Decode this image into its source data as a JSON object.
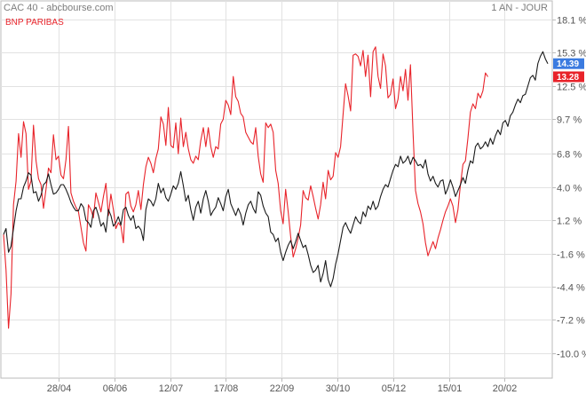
{
  "chart_data": {
    "type": "line",
    "title": "CAC 40 - abcbourse.com",
    "period_label": "1 AN - JOUR",
    "y_unit": "%",
    "ylim": [
      -11.5,
      19.0
    ],
    "y_ticks": [
      "18.1 %",
      "15.3 %",
      "12.5 %",
      "9.7 %",
      "6.8 %",
      "4.0 %",
      "1.2 %",
      "-1.6 %",
      "-4.4 %",
      "-7.2 %",
      "-10.0 %"
    ],
    "x_tick_labels": [
      "28/04",
      "06/06",
      "12/07",
      "17/08",
      "22/09",
      "30/10",
      "05/12",
      "15/01",
      "20/02"
    ],
    "grid": true,
    "colors": {
      "cac40": "#1a1a1a",
      "bnp": "#e8232a",
      "cac40_badge": "#3b7be0",
      "bnp_badge": "#e8232a",
      "grid": "#e2e2e2",
      "axis": "#bbbbbb"
    },
    "series": [
      {
        "name": "CAC 40",
        "last_value_label": "14.39",
        "values": [
          0,
          0.5,
          -1.5,
          -1,
          0.5,
          2,
          3,
          3,
          4,
          4.5,
          5.2,
          5,
          3.5,
          3.6,
          2.8,
          3.3,
          4.2,
          4.4,
          5.1,
          4.2,
          3.4,
          3.5,
          3.8,
          4.2,
          4.2,
          3.8,
          3.3,
          2.7,
          2.3,
          2.0,
          2.0,
          2.6,
          2.3,
          1.2,
          1.0,
          0.6,
          2.0,
          2.3,
          1.6,
          0.7,
          1.0,
          0.2,
          2.1,
          1.6,
          0.7,
          1.0,
          1.5,
          0.8,
          2.1,
          2.3,
          1.6,
          1.2,
          1.6,
          0.5,
          0.7,
          0.4,
          -0.5,
          2.1,
          3.0,
          2.8,
          2.4,
          3.0,
          4.3,
          3.5,
          3.9,
          3.1,
          2.8,
          3.4,
          4.1,
          3.8,
          4.3,
          5.3,
          4.1,
          2.8,
          3.3,
          2.1,
          1.2,
          2.3,
          2.8,
          1.8,
          3.0,
          3.7,
          2.8,
          1.6,
          2.0,
          2.3,
          3.1,
          2.6,
          2.0,
          3.2,
          3.8,
          2.6,
          2.1,
          1.6,
          2.2,
          1.7,
          0.8,
          1.8,
          2.5,
          2.8,
          2.2,
          1.8,
          3.6,
          3.3,
          2.4,
          1.8,
          1.5,
          0.2,
          0.0,
          -0.6,
          -0.3,
          -1.5,
          -2.2,
          -1.5,
          -0.9,
          -0.5,
          -1.2,
          -0.6,
          0.1,
          -0.5,
          -1.1,
          -0.9,
          -1.7,
          -2.6,
          -3.2,
          -3.0,
          -2.6,
          -4.0,
          -3.3,
          -2.2,
          -3.8,
          -4.4,
          -3.7,
          -2.5,
          -1.6,
          -0.5,
          0.6,
          1.0,
          0.5,
          0.1,
          0.8,
          1.5,
          1.1,
          0.9,
          1.9,
          1.5,
          2.4,
          2.1,
          2.8,
          2.1,
          2.4,
          3.2,
          3.8,
          4.2,
          4.0,
          4.7,
          5.4,
          5.9,
          5.7,
          6.6,
          6.0,
          6.2,
          6.6,
          5.9,
          6.5,
          6.2,
          5.8,
          5.9,
          5.6,
          6.3,
          5.1,
          4.5,
          4.9,
          4.3,
          4.0,
          4.5,
          4.6,
          3.4,
          3.9,
          4.6,
          4.0,
          3.2,
          3.7,
          4.2,
          4.8,
          4.3,
          5.4,
          6.2,
          6.0,
          7.4,
          7.7,
          7.2,
          7.4,
          7.8,
          7.4,
          8.1,
          7.6,
          8.3,
          8.8,
          8.4,
          9.4,
          9.6,
          9.1,
          10.0,
          10.3,
          10.9,
          11.4,
          11.1,
          11.7,
          11.8,
          12.5,
          13.2,
          13.4,
          13.0,
          14.4,
          15.0,
          15.4,
          14.8,
          14.39
        ]
      },
      {
        "name": "BNP PARIBAS",
        "last_value_label": "13.28",
        "values": [
          0,
          -3,
          -7.9,
          -5,
          2.5,
          4.5,
          8.5,
          6.5,
          9.5,
          8.5,
          3.8,
          4.5,
          9.2,
          6.2,
          4.7,
          4.2,
          2.2,
          3.8,
          5.6,
          5.2,
          8.4,
          6.3,
          6.6,
          5.0,
          4.7,
          6.3,
          9.1,
          3.5,
          2.8,
          2.3,
          1.9,
          0.6,
          -0.7,
          -1.4,
          2.5,
          2.1,
          1.4,
          3.5,
          2.7,
          1.9,
          3.2,
          4.3,
          1.6,
          3.4,
          2.1,
          0.5,
          1.0,
          0.7,
          -0.7,
          3.4,
          3.6,
          2.4,
          1.9,
          2.5,
          3.7,
          2.1,
          4.2,
          5.7,
          6.5,
          6.0,
          5.2,
          6.4,
          7.2,
          9.9,
          9.3,
          7.5,
          10.7,
          7.5,
          7.3,
          9.4,
          6.8,
          9.8,
          7.4,
          8.6,
          7.2,
          6.3,
          6.0,
          6.6,
          6.3,
          7.9,
          9.0,
          7.4,
          9.0,
          7.4,
          6.5,
          7.4,
          7.2,
          9.3,
          9.7,
          11.3,
          10.9,
          10.1,
          13.3,
          11.6,
          11.2,
          10.2,
          9.9,
          8.6,
          8.2,
          7.8,
          7.6,
          9.0,
          6.6,
          5.1,
          4.4,
          9.4,
          9.0,
          9.3,
          8.6,
          5.4,
          4.3,
          2.0,
          0.9,
          3.8,
          1.9,
          -0.2,
          -1.9,
          -1.2,
          -0.3,
          0.8,
          3.7,
          3.1,
          2.9,
          4.1,
          3.2,
          2.2,
          1.3,
          2.5,
          4.4,
          3.0,
          5.4,
          4.6,
          4.9,
          6.9,
          6.5,
          7.4,
          10.1,
          12.7,
          11.7,
          10.4,
          15.1,
          15.2,
          15.0,
          14.2,
          15.5,
          13.3,
          15.1,
          11.6,
          15.4,
          15.8,
          13.3,
          12.3,
          15.2,
          14.2,
          11.5,
          11.8,
          13.1,
          10.6,
          11.4,
          13.3,
          12.1,
          13.9,
          11.3,
          14.3,
          8.6,
          3.7,
          2.6,
          1.9,
          0.9,
          -0.7,
          -1.8,
          -1.2,
          -0.6,
          -1.2,
          -0.3,
          0.4,
          1.2,
          1.9,
          2.4,
          3.0,
          2.4,
          1.0,
          2.1,
          4.2,
          5.9,
          6.2,
          8.1,
          10.3,
          11.0,
          10.6,
          11.9,
          11.5,
          12.1,
          13.6,
          13.28
        ]
      }
    ]
  }
}
